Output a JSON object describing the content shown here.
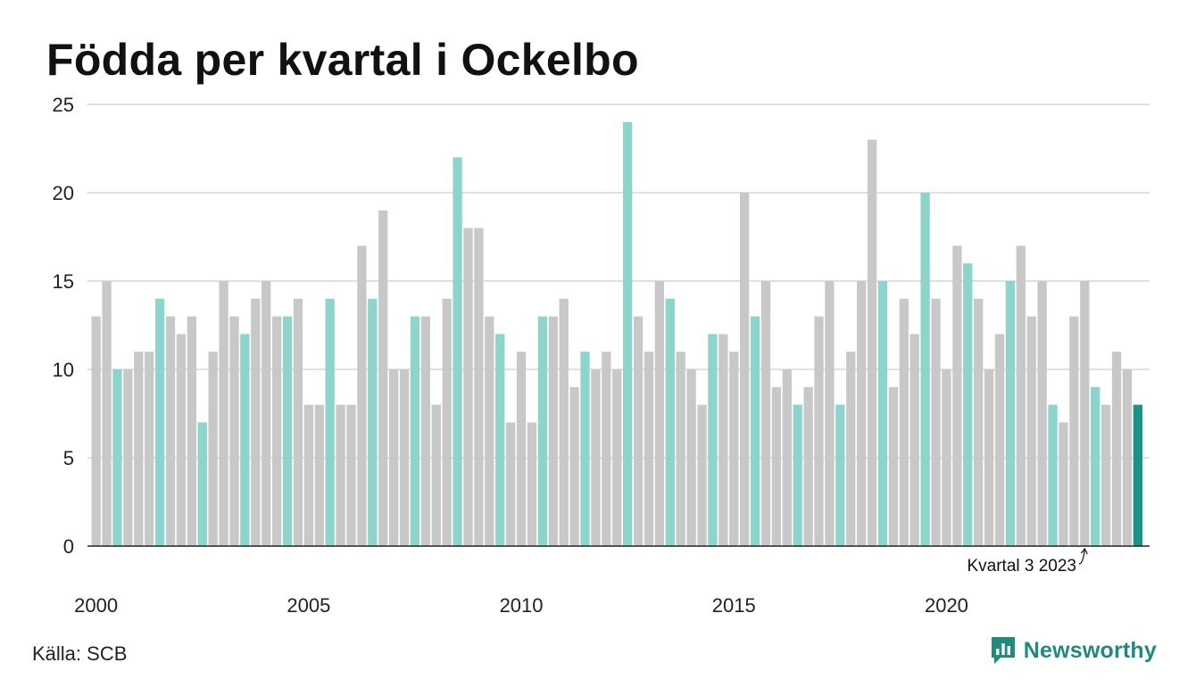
{
  "title": "Födda per kvartal i Ockelbo",
  "source": "Källa: SCB",
  "brand": "Newsworthy",
  "colors": {
    "highlight_quarter": "#8dd4cc",
    "other_quarter": "#c8c8c8",
    "latest": "#1a9385",
    "grid": "#e0e0e0",
    "axis": "#222222",
    "brand": "#1f8a7d"
  },
  "chart_data": {
    "type": "bar",
    "ylim": [
      0,
      25
    ],
    "yticks": [
      0,
      5,
      10,
      15,
      20,
      25
    ],
    "xticks": [
      "2000",
      "2005",
      "2010",
      "2015",
      "2020"
    ],
    "x_start_year": 2000,
    "grid": true,
    "legend": false,
    "annotation": "Kvartal 3 2023",
    "values": [
      13,
      15,
      10,
      10,
      11,
      11,
      14,
      13,
      12,
      13,
      7,
      11,
      15,
      13,
      12,
      14,
      15,
      13,
      13,
      14,
      8,
      8,
      14,
      8,
      8,
      17,
      14,
      19,
      10,
      10,
      13,
      13,
      8,
      14,
      22,
      18,
      18,
      13,
      12,
      7,
      11,
      7,
      13,
      13,
      14,
      9,
      11,
      10,
      11,
      10,
      24,
      13,
      11,
      15,
      14,
      11,
      10,
      8,
      12,
      12,
      11,
      20,
      13,
      15,
      9,
      10,
      8,
      9,
      13,
      15,
      8,
      11,
      15,
      23,
      15,
      9,
      14,
      12,
      20,
      14,
      10,
      17,
      16,
      14,
      10,
      12,
      15,
      17,
      13,
      15,
      8,
      7,
      13,
      15,
      9,
      8,
      11,
      10,
      8
    ],
    "highlighted_quarter": 3
  }
}
